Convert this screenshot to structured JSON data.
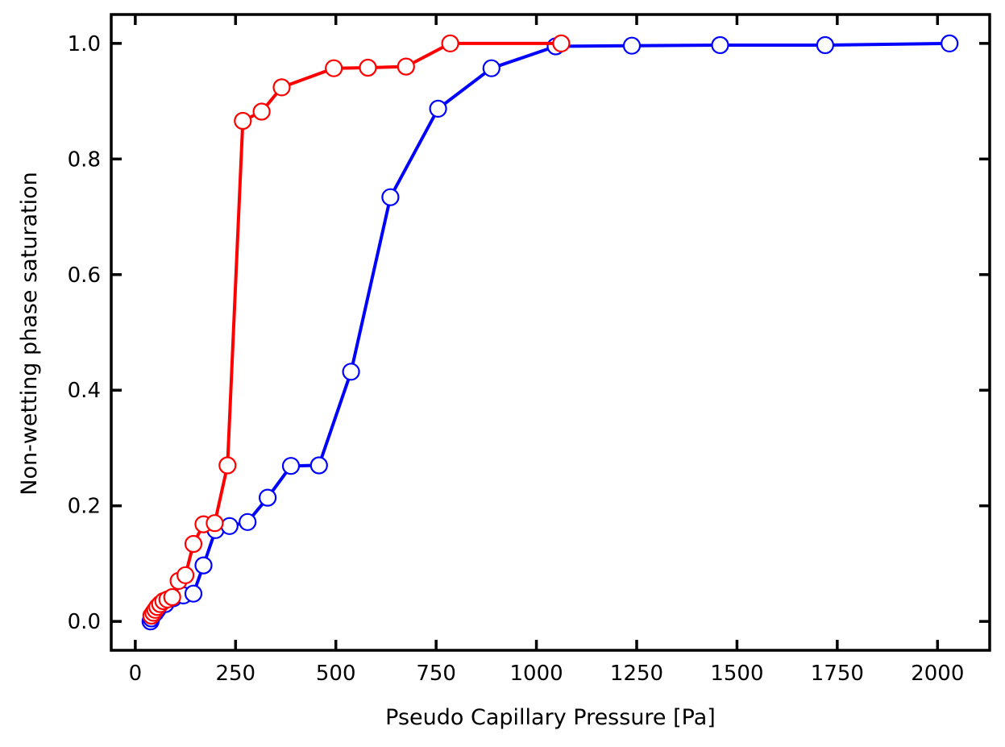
{
  "chart_data": {
    "type": "line",
    "xlabel": "Pseudo Capillary Pressure [Pa]",
    "ylabel": "Non-wetting phase saturation",
    "xlim": [
      -60,
      2130
    ],
    "ylim": [
      -0.05,
      1.05
    ],
    "xticks": [
      0,
      250,
      500,
      750,
      1000,
      1250,
      1500,
      1750,
      2000
    ],
    "yticks": [
      0.0,
      0.2,
      0.4,
      0.6,
      0.8,
      1.0
    ],
    "xtick_labels": [
      "0",
      "250",
      "500",
      "750",
      "1000",
      "1250",
      "1500",
      "1750",
      "2000"
    ],
    "ytick_labels": [
      "0.0",
      "0.2",
      "0.4",
      "0.6",
      "0.8",
      "1.0"
    ],
    "grid": false,
    "marker": "open-circle",
    "series": [
      {
        "color": "#0000ff",
        "x": [
          38,
          40,
          42,
          45,
          50,
          55,
          60,
          75,
          95,
          120,
          145,
          170,
          200,
          235,
          280,
          330,
          388,
          458,
          538,
          636,
          755,
          888,
          1048,
          1238,
          1458,
          1720,
          2030
        ],
        "y": [
          0.0,
          0.005,
          0.01,
          0.012,
          0.015,
          0.02,
          0.025,
          0.03,
          0.04,
          0.045,
          0.048,
          0.097,
          0.158,
          0.165,
          0.172,
          0.214,
          0.269,
          0.27,
          0.432,
          0.734,
          0.887,
          0.957,
          0.995,
          0.996,
          0.997,
          0.997,
          1.0
        ]
      },
      {
        "color": "#ff0000",
        "x": [
          40,
          45,
          50,
          55,
          62,
          70,
          80,
          92,
          108,
          125,
          145,
          170,
          198,
          230,
          268,
          315,
          365,
          495,
          580,
          675,
          785,
          1062
        ],
        "y": [
          0.01,
          0.015,
          0.02,
          0.025,
          0.03,
          0.035,
          0.038,
          0.042,
          0.07,
          0.08,
          0.134,
          0.168,
          0.17,
          0.27,
          0.866,
          0.882,
          0.924,
          0.957,
          0.958,
          0.96,
          1.0,
          1.0
        ]
      }
    ]
  }
}
